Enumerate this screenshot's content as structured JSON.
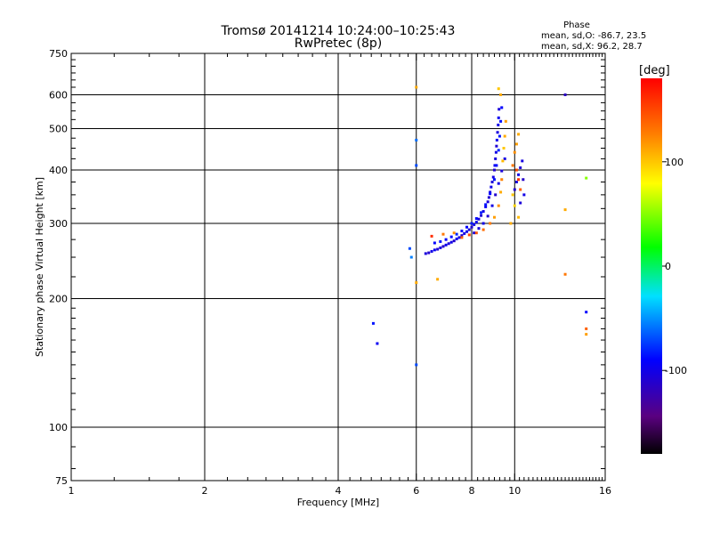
{
  "chart_data": {
    "type": "scatter",
    "title": "Tromsø 20141214 10:24:00–10:25:43",
    "subtitle": "RwPretec (8p)",
    "xlabel": "Frequency [MHz]",
    "ylabel": "Stationary phase Virtual Height [km]",
    "x_scale": "log",
    "y_scale": "log",
    "xlim": [
      1,
      16
    ],
    "ylim": [
      75,
      750
    ],
    "x_ticks": [
      1,
      2,
      4,
      6,
      8,
      10,
      16
    ],
    "x_tick_labels": [
      "1",
      "2",
      "4",
      "6",
      "8",
      "10",
      "16"
    ],
    "y_ticks": [
      75,
      100,
      200,
      300,
      400,
      500,
      600,
      750
    ],
    "y_tick_labels": [
      "75",
      "100",
      "200",
      "300",
      "400",
      "500",
      "600",
      "750"
    ],
    "grid": true,
    "phase_stats": {
      "title": "Phase",
      "line_o": "mean, sd,O: -86.7, 23.5",
      "line_x": "mean, sd,X: 96.2, 28.7"
    },
    "colorbar": {
      "label": "[deg]",
      "range": [
        -180,
        180
      ],
      "ticks": [
        100,
        0,
        -100
      ],
      "tick_labels": [
        "100",
        "0",
        "-100"
      ],
      "colormap": "rainbow (black-purple-blue-cyan-green-yellow-orange-red)"
    },
    "series": [
      {
        "name": "O",
        "points": [
          [
            6.3,
            255,
            -105
          ],
          [
            6.4,
            256,
            -110
          ],
          [
            6.5,
            258,
            -100
          ],
          [
            6.6,
            260,
            -95
          ],
          [
            6.7,
            261,
            -108
          ],
          [
            6.8,
            263,
            -102
          ],
          [
            6.9,
            265,
            -112
          ],
          [
            7.0,
            267,
            -98
          ],
          [
            7.1,
            269,
            -105
          ],
          [
            7.2,
            271,
            -100
          ],
          [
            7.3,
            273,
            -110
          ],
          [
            7.4,
            276,
            -95
          ],
          [
            7.5,
            278,
            -103
          ],
          [
            7.6,
            281,
            -108
          ],
          [
            7.7,
            284,
            -100
          ],
          [
            7.8,
            287,
            -97
          ],
          [
            7.9,
            290,
            -105
          ],
          [
            8.0,
            294,
            -110
          ],
          [
            8.1,
            298,
            -100
          ],
          [
            8.2,
            302,
            -96
          ],
          [
            8.3,
            307,
            -104
          ],
          [
            8.4,
            313,
            -108
          ],
          [
            8.5,
            320,
            -100
          ],
          [
            8.6,
            328,
            -95
          ],
          [
            8.7,
            337,
            -105
          ],
          [
            8.75,
            345,
            -110
          ],
          [
            8.8,
            355,
            -100
          ],
          [
            8.85,
            365,
            -98
          ],
          [
            8.9,
            375,
            -106
          ],
          [
            8.95,
            385,
            -102
          ],
          [
            9.0,
            400,
            -110
          ],
          [
            9.02,
            410,
            -95
          ],
          [
            9.05,
            425,
            -104
          ],
          [
            9.08,
            440,
            -100
          ],
          [
            9.1,
            455,
            -108
          ],
          [
            9.12,
            470,
            -97
          ],
          [
            9.15,
            490,
            -103
          ],
          [
            9.18,
            510,
            -100
          ],
          [
            9.2,
            530,
            -96
          ],
          [
            9.22,
            555,
            -105
          ],
          [
            6.6,
            270,
            -90
          ],
          [
            6.8,
            272,
            -85
          ],
          [
            7.0,
            275,
            -92
          ],
          [
            7.2,
            279,
            -88
          ],
          [
            7.4,
            283,
            -80
          ],
          [
            7.6,
            288,
            -86
          ],
          [
            7.8,
            294,
            -90
          ],
          [
            8.0,
            300,
            -84
          ],
          [
            8.2,
            308,
            -88
          ],
          [
            8.4,
            318,
            -82
          ],
          [
            8.6,
            332,
            -86
          ],
          [
            8.8,
            352,
            -90
          ],
          [
            9.0,
            380,
            -84
          ],
          [
            9.1,
            410,
            -88
          ],
          [
            9.2,
            445,
            -80
          ],
          [
            9.25,
            480,
            -85
          ],
          [
            9.3,
            520,
            -86
          ],
          [
            9.35,
            560,
            -90
          ],
          [
            8.1,
            285,
            -108
          ],
          [
            8.3,
            292,
            -104
          ],
          [
            8.5,
            300,
            -100
          ],
          [
            8.7,
            312,
            -108
          ],
          [
            8.9,
            330,
            -102
          ],
          [
            9.05,
            350,
            -110
          ],
          [
            9.2,
            372,
            -100
          ],
          [
            9.35,
            398,
            -105
          ],
          [
            9.5,
            425,
            -100
          ],
          [
            10.0,
            360,
            -110
          ],
          [
            10.1,
            375,
            -105
          ],
          [
            10.2,
            390,
            -100
          ],
          [
            10.3,
            405,
            -108
          ],
          [
            10.4,
            420,
            -102
          ],
          [
            10.45,
            380,
            -112
          ],
          [
            10.5,
            350,
            -100
          ],
          [
            10.3,
            335,
            -106
          ],
          [
            6.0,
            470,
            -60
          ],
          [
            6.0,
            410,
            -70
          ],
          [
            6.0,
            140,
            -70
          ],
          [
            5.8,
            262,
            -70
          ],
          [
            5.85,
            250,
            -55
          ],
          [
            4.8,
            175,
            -85
          ],
          [
            4.9,
            157,
            -95
          ],
          [
            13.0,
            600,
            -115
          ],
          [
            14.5,
            186,
            -90
          ]
        ]
      },
      {
        "name": "X",
        "points": [
          [
            6.0,
            625,
            110
          ],
          [
            6.0,
            218,
            110
          ],
          [
            6.7,
            222,
            110
          ],
          [
            6.5,
            280,
            160
          ],
          [
            6.9,
            283,
            130
          ],
          [
            7.3,
            285,
            120
          ],
          [
            7.6,
            278,
            140
          ],
          [
            7.9,
            282,
            150
          ],
          [
            8.2,
            285,
            145
          ],
          [
            8.5,
            290,
            135
          ],
          [
            8.8,
            300,
            130
          ],
          [
            9.0,
            310,
            115
          ],
          [
            9.2,
            330,
            120
          ],
          [
            9.3,
            355,
            110
          ],
          [
            9.35,
            380,
            125
          ],
          [
            9.4,
            420,
            105
          ],
          [
            9.45,
            450,
            100
          ],
          [
            9.5,
            480,
            110
          ],
          [
            9.55,
            520,
            115
          ],
          [
            9.3,
            600,
            110
          ],
          [
            9.2,
            620,
            100
          ],
          [
            9.9,
            410,
            130
          ],
          [
            10.0,
            440,
            120
          ],
          [
            10.1,
            460,
            115
          ],
          [
            10.2,
            485,
            110
          ],
          [
            10.1,
            400,
            150
          ],
          [
            10.2,
            380,
            160
          ],
          [
            10.3,
            360,
            140
          ],
          [
            9.9,
            350,
            100
          ],
          [
            10.0,
            330,
            95
          ],
          [
            10.2,
            310,
            105
          ],
          [
            9.8,
            300,
            110
          ],
          [
            13.0,
            323,
            110
          ],
          [
            13.0,
            228,
            130
          ],
          [
            14.5,
            383,
            50
          ],
          [
            14.5,
            170,
            140
          ],
          [
            14.5,
            165,
            115
          ]
        ]
      }
    ]
  }
}
